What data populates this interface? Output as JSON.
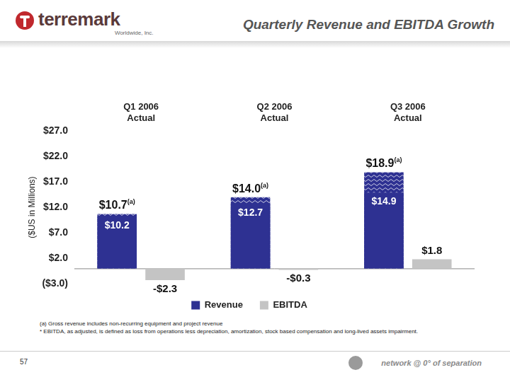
{
  "header": {
    "logo": "terremark",
    "logo_subtitle": "Worldwide, Inc.",
    "title": "Quarterly Revenue and EBITDA Growth"
  },
  "chart_data": {
    "type": "bar",
    "y_label": "($US in Millions)",
    "categories": [
      [
        "Q1 2006",
        "Actual"
      ],
      [
        "Q2 2006",
        "Actual"
      ],
      [
        "Q3 2006",
        "Actual"
      ]
    ],
    "series": [
      {
        "name": "Revenue",
        "color": "#2e3192",
        "values": [
          10.2,
          12.7,
          14.9
        ],
        "value_labels": [
          "$10.2",
          "$12.7",
          "$14.9"
        ],
        "gross_values": [
          10.7,
          14.0,
          18.9
        ],
        "gross_value_labels": [
          "$10.7",
          "$14.0",
          "$18.9"
        ],
        "gross_note": "(a)"
      },
      {
        "name": "EBITDA",
        "color": "#c4c4c4",
        "values": [
          -2.3,
          -0.3,
          1.8
        ],
        "value_labels": [
          "-$2.3",
          "-$0.3",
          "$1.8"
        ]
      }
    ],
    "ylim": [
      -3,
      27
    ],
    "yticks": [
      {
        "value": -3,
        "label": "($3.0)"
      },
      {
        "value": 2,
        "label": "$2.0"
      },
      {
        "value": 7,
        "label": "$7.0"
      },
      {
        "value": 12,
        "label": "$12.0"
      },
      {
        "value": 17,
        "label": "$17.0"
      },
      {
        "value": 22,
        "label": "$22.0"
      },
      {
        "value": 27,
        "label": "$27.0"
      }
    ],
    "grid": false,
    "legend": "bottom",
    "data_labels": true
  },
  "footnotes": [
    "(a) Gross revenue includes non-recurring equipment and project revenue",
    "* EBITDA, as adjusted, is defined as loss from operations less depreciation, amortization, stock based compensation and long-lived assets impairment."
  ],
  "page_number": "57",
  "footer": "network @ 0° of separation"
}
